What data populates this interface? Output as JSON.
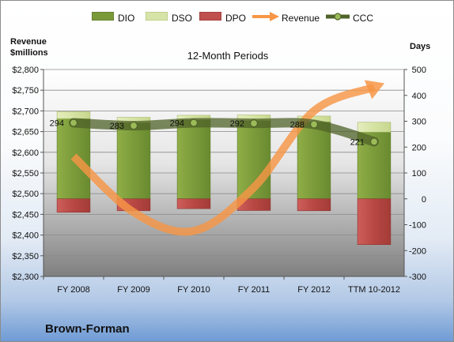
{
  "chart_data": {
    "type": "bar",
    "title": "12-Month Periods",
    "company": "Brown-Forman",
    "ylabel_left": [
      "Revenue",
      "$millions"
    ],
    "ylabel_right": "Days",
    "categories": [
      "FY 2008",
      "FY 2009",
      "FY 2010",
      "FY 2011",
      "FY 2012",
      "TTM 10-2012"
    ],
    "left_axis": {
      "ylim": [
        2300,
        2800
      ],
      "ticks": [
        2300,
        2350,
        2400,
        2450,
        2500,
        2550,
        2600,
        2650,
        2700,
        2750,
        2800
      ],
      "tick_labels": [
        "$2,300",
        "$2,350",
        "$2,400",
        "$2,450",
        "$2,500",
        "$2,550",
        "$2,600",
        "$2,650",
        "$2,700",
        "$2,750",
        "$2,800"
      ]
    },
    "right_axis": {
      "ylim": [
        -300,
        500
      ],
      "ticks": [
        -300,
        -200,
        -100,
        0,
        100,
        200,
        300,
        400,
        500
      ],
      "tick_labels": [
        "-300",
        "-200",
        "-100",
        "0",
        "100",
        "200",
        "300",
        "400",
        "500"
      ]
    },
    "series": [
      {
        "name": "DIO",
        "kind": "stacked-bar",
        "axis": "right",
        "color": "#7a9a3a",
        "values": [
          310,
          295,
          306,
          303,
          298,
          258
        ]
      },
      {
        "name": "DSO",
        "kind": "stacked-bar",
        "axis": "right",
        "color": "#d7e4a8",
        "values": [
          27,
          20,
          17,
          21,
          22,
          38
        ]
      },
      {
        "name": "DPO",
        "kind": "stacked-bar",
        "axis": "right",
        "color": "#c0504d",
        "values": [
          -52,
          -46,
          -38,
          -45,
          -46,
          -177
        ]
      },
      {
        "name": "Revenue",
        "kind": "line",
        "axis": "left",
        "color": "#f79646",
        "values": [
          2590,
          2455,
          2410,
          2515,
          2700,
          2757
        ]
      },
      {
        "name": "CCC",
        "kind": "line",
        "axis": "right",
        "color": "#4f6228",
        "values": [
          294,
          283,
          294,
          292,
          288,
          221
        ],
        "labels": [
          "294",
          "283",
          "294",
          "292",
          "288",
          "221"
        ]
      }
    ],
    "grid": true,
    "legend": "top"
  }
}
